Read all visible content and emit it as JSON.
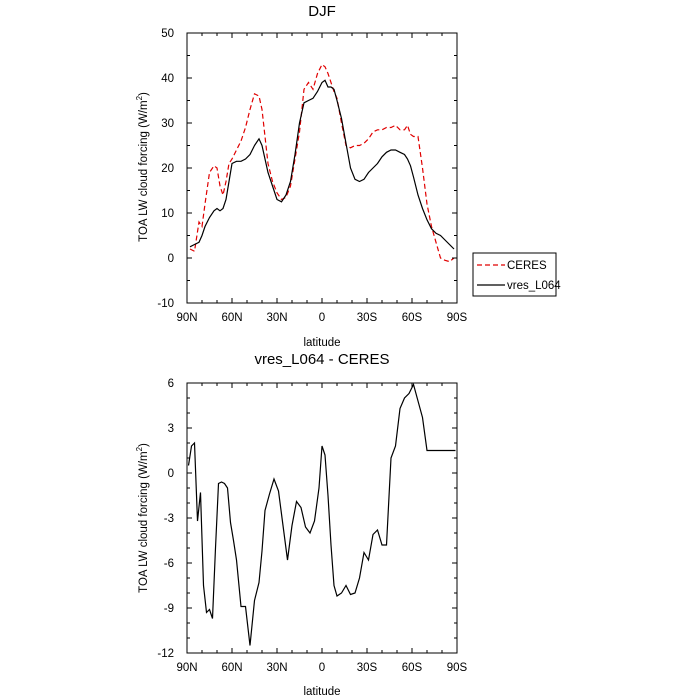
{
  "chart_data": [
    {
      "type": "line",
      "title": "DJF",
      "xlabel": "latitude",
      "ylabel": "TOA LW cloud forcing (W/m",
      "ylabel_sup": "2",
      "ylabel_end": ")",
      "xlim": [
        90,
        -90
      ],
      "ylim": [
        -10,
        50
      ],
      "xticks": [
        90,
        60,
        30,
        0,
        -30,
        -60,
        -90
      ],
      "xtick_labels": [
        "90N",
        "60N",
        "30N",
        "0",
        "30S",
        "60S",
        "90S"
      ],
      "yticks": [
        -10,
        0,
        10,
        20,
        30,
        40,
        50
      ],
      "ytick_labels": [
        "-10",
        "0",
        "10",
        "20",
        "30",
        "40",
        "50"
      ],
      "legend": {
        "placement": "right",
        "entries": [
          "CERES",
          "vres_L064"
        ]
      },
      "series": [
        {
          "name": "CERES",
          "color": "#e00000",
          "style": "dashed",
          "x": [
            88,
            85,
            82,
            80,
            78,
            75,
            72,
            70,
            68,
            66,
            64,
            62,
            60,
            57,
            54,
            51,
            48,
            45,
            42,
            40,
            38,
            36,
            33,
            30,
            27,
            24,
            21,
            18,
            15,
            12,
            9,
            6,
            3,
            0,
            -2,
            -4,
            -6,
            -8,
            -10,
            -13,
            -16,
            -19,
            -22,
            -25,
            -28,
            -31,
            -34,
            -37,
            -40,
            -43,
            -46,
            -49,
            -52,
            -55,
            -57,
            -59,
            -61,
            -64,
            -67,
            -70,
            -73,
            -76,
            -79,
            -82,
            -85,
            -88
          ],
          "y": [
            2,
            1.5,
            8,
            7,
            12,
            19,
            20.5,
            20,
            16,
            14,
            17,
            21,
            22,
            24,
            26,
            29,
            33,
            36.5,
            36,
            33,
            27,
            21,
            17,
            14.5,
            13,
            13.5,
            16,
            22,
            28,
            37.5,
            39,
            37.5,
            41,
            43,
            42.5,
            41,
            39,
            37,
            35.5,
            30,
            25,
            24.5,
            25,
            25,
            25.5,
            26.5,
            28,
            28.5,
            28.5,
            29,
            29,
            29.5,
            28.5,
            28.5,
            29.5,
            27.5,
            27,
            27,
            20,
            12,
            7,
            3.5,
            0,
            -0.5,
            -0.8,
            0
          ]
        },
        {
          "name": "vres_L064",
          "color": "#000000",
          "style": "solid",
          "x": [
            88,
            85,
            82,
            80,
            78,
            75,
            72,
            70,
            68,
            66,
            64,
            62,
            60,
            57,
            54,
            51,
            48,
            45,
            42,
            40,
            38,
            36,
            33,
            30,
            27,
            24,
            21,
            18,
            15,
            12,
            9,
            6,
            3,
            0,
            -2,
            -4,
            -6,
            -8,
            -10,
            -13,
            -16,
            -19,
            -22,
            -25,
            -28,
            -31,
            -34,
            -37,
            -40,
            -43,
            -46,
            -49,
            -52,
            -55,
            -57,
            -59,
            -61,
            -64,
            -67,
            -70,
            -73,
            -76,
            -79,
            -82,
            -85,
            -88
          ],
          "y": [
            2.5,
            3,
            3.5,
            5,
            7,
            9,
            10.5,
            11,
            10.5,
            11,
            13,
            17,
            21,
            21.5,
            21.5,
            22,
            23,
            25,
            26.5,
            25,
            22,
            19,
            16,
            13,
            12.5,
            14,
            17,
            23,
            30,
            34.5,
            35,
            35.5,
            37,
            39,
            39.5,
            38,
            38,
            37.5,
            35,
            31,
            25.5,
            20,
            17.5,
            17,
            17.5,
            19,
            20,
            21,
            22.5,
            23.5,
            24,
            24,
            23.5,
            23,
            22,
            20.5,
            18,
            14,
            11,
            8.5,
            6.5,
            5.5,
            5,
            4,
            3,
            2
          ]
        }
      ]
    },
    {
      "type": "line",
      "title": "vres_L064 - CERES",
      "xlabel": "latitude",
      "ylabel": "TOA LW cloud forcing (W/m",
      "ylabel_sup": "2",
      "ylabel_end": ")",
      "xlim": [
        90,
        -90
      ],
      "ylim": [
        -12,
        6
      ],
      "xticks": [
        90,
        60,
        30,
        0,
        -30,
        -60,
        -90
      ],
      "xtick_labels": [
        "90N",
        "60N",
        "30N",
        "0",
        "30S",
        "60S",
        "90S"
      ],
      "yticks": [
        -12,
        -9,
        -6,
        -3,
        0,
        3,
        6
      ],
      "ytick_labels": [
        "-12",
        "-9",
        "-6",
        "-3",
        "0",
        "3",
        "6"
      ],
      "series": [
        {
          "name": "vres_L064 - CERES",
          "color": "#000000",
          "style": "solid",
          "x": [
            89,
            87,
            85,
            83,
            81,
            79,
            77,
            75,
            73,
            71,
            69,
            67,
            65,
            63,
            61,
            59,
            57,
            54,
            51,
            48,
            45,
            42,
            40,
            38,
            35,
            32,
            29,
            26,
            23,
            20,
            17,
            14,
            11,
            8,
            5,
            2,
            0,
            -2,
            -4,
            -6,
            -8,
            -10,
            -13,
            -16,
            -19,
            -22,
            -25,
            -28,
            -31,
            -34,
            -37,
            -40,
            -43,
            -46,
            -49,
            -52,
            -55,
            -58,
            -61,
            -64,
            -67,
            -70,
            -73,
            -76,
            -79,
            -82,
            -84,
            -86,
            -88,
            -89
          ],
          "y": [
            0.5,
            1.8,
            2,
            -3.2,
            -1.3,
            -7.5,
            -9.3,
            -9.1,
            -9.7,
            -5,
            -0.7,
            -0.6,
            -0.7,
            -1,
            -3.3,
            -4.5,
            -5.8,
            -8.9,
            -8.9,
            -11.5,
            -8.5,
            -7.3,
            -5.2,
            -2.5,
            -1.4,
            -0.4,
            -1.2,
            -3.5,
            -5.8,
            -3.5,
            -1.9,
            -2.3,
            -3.6,
            -4,
            -3.2,
            -1,
            1.8,
            1.2,
            -1.5,
            -4.8,
            -7.5,
            -8.2,
            -8,
            -7.5,
            -8.1,
            -8,
            -7,
            -5.3,
            -5.8,
            -4.1,
            -3.8,
            -4.8,
            -4.8,
            1,
            1.8,
            4.3,
            5,
            5.3,
            5.9,
            4.8,
            3.7,
            1.5,
            1.5,
            1.5,
            1.5,
            1.5,
            1.5,
            1.5,
            1.5,
            1.5
          ]
        }
      ]
    }
  ]
}
